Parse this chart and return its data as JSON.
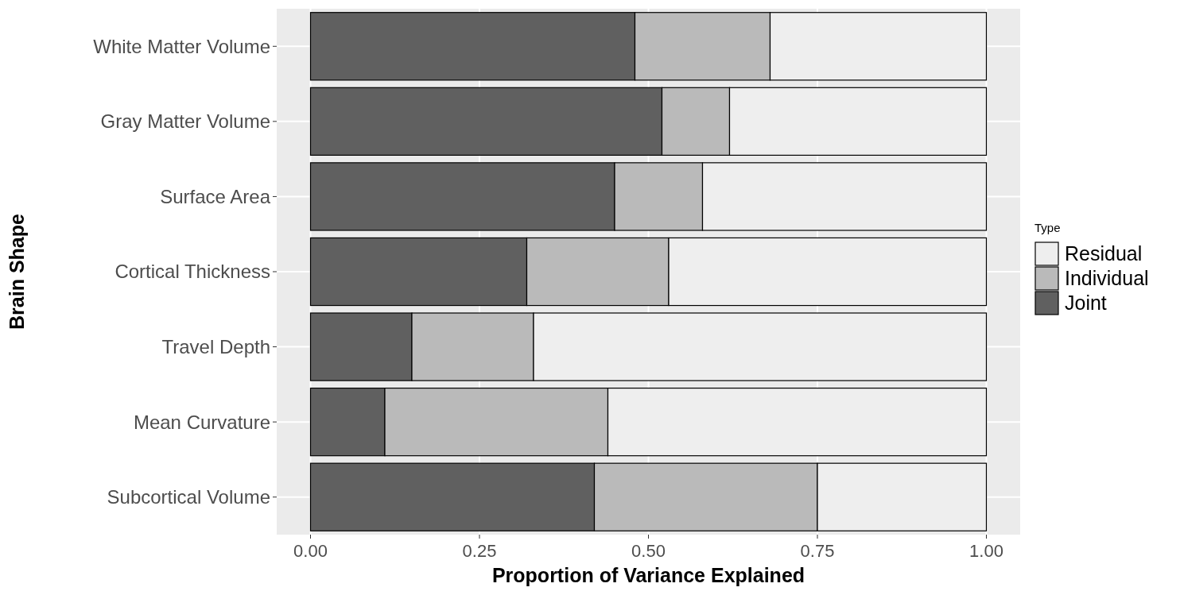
{
  "chart_data": {
    "type": "bar",
    "orientation": "horizontal",
    "stacked": true,
    "xlabel": "Proportion of Variance Explained",
    "ylabel": "Brain Shape",
    "legend_title": "Type",
    "legend": "right",
    "grid": true,
    "categories": [
      "White Matter Volume",
      "Gray Matter Volume",
      "Surface Area",
      "Cortical Thickness",
      "Travel Depth",
      "Mean Curvature",
      "Subcortical Volume"
    ],
    "xlim": [
      -0.05,
      1.05
    ],
    "xticks": [
      {
        "value": 0,
        "label": "0.00"
      },
      {
        "value": 0.25,
        "label": "0.25"
      },
      {
        "value": 0.5,
        "label": "0.50"
      },
      {
        "value": 0.75,
        "label": "0.75"
      },
      {
        "value": 1,
        "label": "1.00"
      }
    ],
    "series": [
      {
        "name": "Joint",
        "color": "#606060",
        "values": [
          0.48,
          0.52,
          0.45,
          0.32,
          0.15,
          0.11,
          0.42
        ]
      },
      {
        "name": "Individual",
        "color": "#bababa",
        "values": [
          0.2,
          0.1,
          0.13,
          0.21,
          0.18,
          0.33,
          0.33
        ]
      },
      {
        "name": "Residual",
        "color": "#eeeeee",
        "values": [
          0.32,
          0.38,
          0.42,
          0.47,
          0.67,
          0.56,
          0.25
        ]
      }
    ]
  }
}
